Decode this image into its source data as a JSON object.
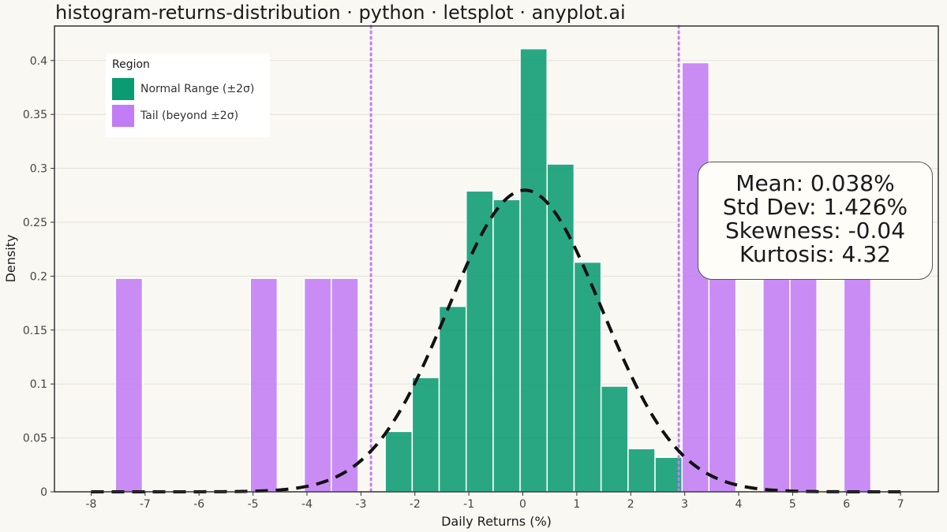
{
  "title": "histogram-returns-distribution · python · letsplot · anyplot.ai",
  "chart_data": {
    "type": "bar",
    "xlabel": "Daily Returns (%)",
    "ylabel": "Density",
    "xlim": [
      -8.68,
      7.7
    ],
    "ylim": [
      0,
      0.432
    ],
    "x_ticks": [
      -8,
      -7,
      -6,
      -5,
      -4,
      -3,
      -2,
      -1,
      0,
      1,
      2,
      3,
      4,
      5,
      6,
      7
    ],
    "x_tick_labels": [
      "-8",
      "-7",
      "-6",
      "-5",
      "-4",
      "-3",
      "-2",
      "-1",
      "0",
      "1",
      "2",
      "3",
      "4",
      "5",
      "6",
      "7"
    ],
    "y_ticks": [
      0,
      0.05,
      0.1,
      0.15,
      0.2,
      0.25,
      0.3,
      0.35,
      0.4
    ],
    "y_tick_labels": [
      "0",
      "0.05",
      "0.1",
      "0.15",
      "0.2",
      "0.25",
      "0.3",
      "0.35",
      "0.4"
    ],
    "bin_width": 0.5,
    "sigma_lines": [
      -2.814,
      2.89
    ],
    "legend": {
      "title": "Region",
      "position": "top-left",
      "entries": [
        {
          "label": "Normal Range (±2σ)",
          "color": "#0b9b73"
        },
        {
          "label": "Tail (beyond ±2σ)",
          "color": "#c27cf5"
        }
      ]
    },
    "bars": [
      {
        "x_start": -7.55,
        "x_end": -7.05,
        "density": 0.198,
        "region": "Tail (beyond ±2σ)"
      },
      {
        "x_start": -5.05,
        "x_end": -4.55,
        "density": 0.198,
        "region": "Tail (beyond ±2σ)"
      },
      {
        "x_start": -4.05,
        "x_end": -3.55,
        "density": 0.198,
        "region": "Tail (beyond ±2σ)"
      },
      {
        "x_start": -3.55,
        "x_end": -3.05,
        "density": 0.198,
        "region": "Tail (beyond ±2σ)"
      },
      {
        "x_start": -2.55,
        "x_end": -2.05,
        "density": 0.056,
        "region": "Normal Range (±2σ)"
      },
      {
        "x_start": -2.05,
        "x_end": -1.55,
        "density": 0.106,
        "region": "Normal Range (±2σ)"
      },
      {
        "x_start": -1.55,
        "x_end": -1.05,
        "density": 0.172,
        "region": "Normal Range (±2σ)"
      },
      {
        "x_start": -1.05,
        "x_end": -0.55,
        "density": 0.279,
        "region": "Normal Range (±2σ)"
      },
      {
        "x_start": -0.55,
        "x_end": -0.05,
        "density": 0.271,
        "region": "Normal Range (±2σ)"
      },
      {
        "x_start": -0.05,
        "x_end": 0.45,
        "density": 0.411,
        "region": "Normal Range (±2σ)"
      },
      {
        "x_start": 0.45,
        "x_end": 0.95,
        "density": 0.304,
        "region": "Normal Range (±2σ)"
      },
      {
        "x_start": 0.95,
        "x_end": 1.45,
        "density": 0.213,
        "region": "Normal Range (±2σ)"
      },
      {
        "x_start": 1.45,
        "x_end": 1.95,
        "density": 0.098,
        "region": "Normal Range (±2σ)"
      },
      {
        "x_start": 1.95,
        "x_end": 2.45,
        "density": 0.04,
        "region": "Normal Range (±2σ)"
      },
      {
        "x_start": 2.45,
        "x_end": 2.95,
        "density": 0.032,
        "region": "Normal Range (±2σ)"
      },
      {
        "x_start": 2.95,
        "x_end": 3.45,
        "density": 0.398,
        "region": "Tail (beyond ±2σ)"
      },
      {
        "x_start": 3.45,
        "x_end": 3.95,
        "density": 0.198,
        "region": "Tail (beyond ±2σ)"
      },
      {
        "x_start": 4.45,
        "x_end": 4.95,
        "density": 0.198,
        "region": "Tail (beyond ±2σ)"
      },
      {
        "x_start": 4.95,
        "x_end": 5.45,
        "density": 0.198,
        "region": "Tail (beyond ±2σ)"
      },
      {
        "x_start": 5.95,
        "x_end": 6.45,
        "density": 0.198,
        "region": "Tail (beyond ±2σ)"
      }
    ],
    "normal_curve": {
      "mean": 0.038,
      "std": 1.426,
      "x_range": [
        -8.0,
        7.0
      ],
      "style": "dashed"
    },
    "annotation": {
      "lines": [
        "Mean: 0.038%",
        "Std Dev: 1.426%",
        "Skewness: -0.04",
        "Kurtosis: 4.32"
      ],
      "position": "right"
    },
    "grid": true
  }
}
